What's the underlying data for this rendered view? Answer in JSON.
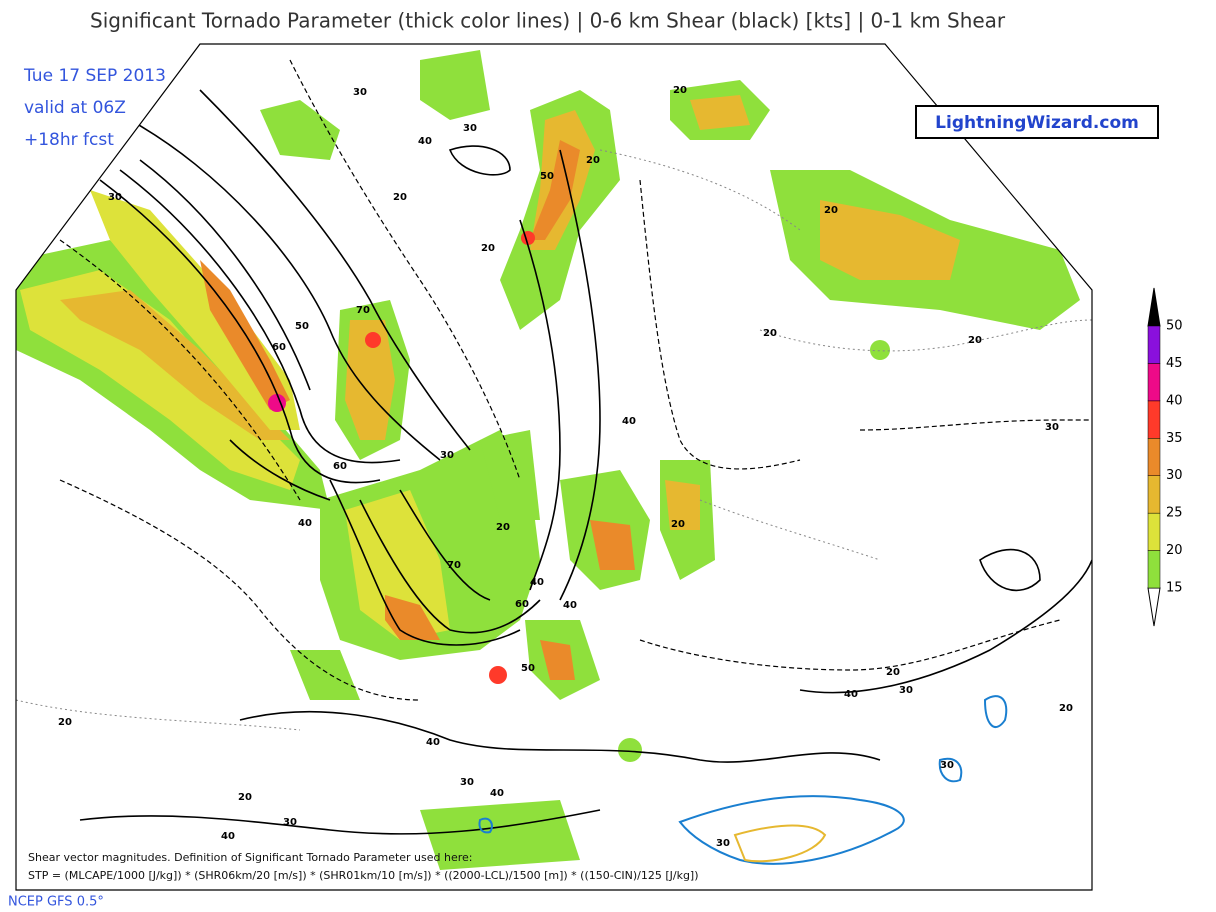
{
  "header": {
    "title": "Significant Tornado Parameter (thick color lines) | 0-6 km Shear (black) [kts] | 0-1 km Shear",
    "date": "Tue 17 SEP 2013",
    "valid": "valid at 06Z",
    "forecast": "+18hr fcst"
  },
  "brand": "LightningWizard.com",
  "legend": {
    "top_color": "#000000",
    "bottom_color": "#ffffff",
    "levels": [
      {
        "label": "15",
        "color": "#8fe03c"
      },
      {
        "label": "20",
        "color": "#dde23a"
      },
      {
        "label": "25",
        "color": "#e6b830"
      },
      {
        "label": "30",
        "color": "#ea8a2a"
      },
      {
        "label": "35",
        "color": "#ff3a2a"
      },
      {
        "label": "40",
        "color": "#ee0a88"
      },
      {
        "label": "45",
        "color": "#8a10dd"
      },
      {
        "label": "50",
        "color": null
      }
    ]
  },
  "contour_labels": [
    "30",
    "40",
    "30",
    "20",
    "30",
    "50",
    "20",
    "20",
    "20",
    "20",
    "20",
    "20",
    "50",
    "60",
    "70",
    "30",
    "60",
    "40",
    "40",
    "30",
    "20",
    "20",
    "70",
    "40",
    "60",
    "40",
    "50",
    "20",
    "30",
    "40",
    "20",
    "20",
    "40",
    "30",
    "40",
    "20",
    "30",
    "40",
    "30",
    "30"
  ],
  "footer": {
    "note": "Shear vector magnitudes. Definition of Significant Tornado Parameter used here:",
    "formula": "STP = (MLCAPE/1000 [J/kg]) * (SHR06km/20 [m/s]) * (SHR01km/10 [m/s]) * ((2000-LCL)/1500 [m]) * ((150-CIN)/125 [J/kg])",
    "model": "NCEP GFS 0.5°"
  }
}
